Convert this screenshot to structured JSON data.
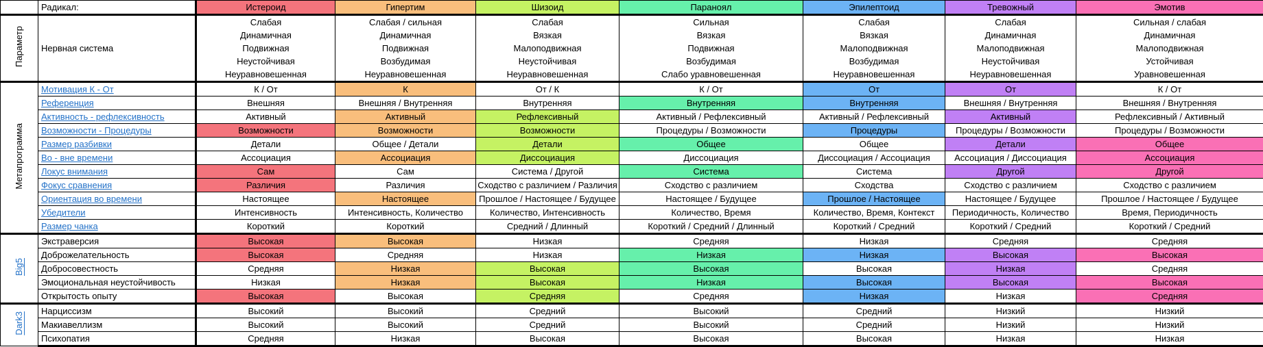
{
  "colors": {
    "link": "#2472C8",
    "grid": "#000000",
    "background": "#FFFFFF"
  },
  "header": {
    "label": "Радикал:"
  },
  "radicals": [
    {
      "name": "Истероид",
      "color": "#F4747C"
    },
    {
      "name": "Гипертим",
      "color": "#F9BE7C"
    },
    {
      "name": "Шизоид",
      "color": "#C5F263"
    },
    {
      "name": "Параноял",
      "color": "#66F0AB"
    },
    {
      "name": "Эпилептоид",
      "color": "#6CB3F5"
    },
    {
      "name": "Тревожный",
      "color": "#C080F5"
    },
    {
      "name": "Эмотив",
      "color": "#FA70B5"
    }
  ],
  "sections": [
    {
      "id": "parametr",
      "label": "Параметр",
      "side_link": false,
      "rows": [
        {
          "label": "Нервная система",
          "link": false,
          "multi": true,
          "cells": [
            [
              "Слабая",
              "Динамичная",
              "Подвижная",
              "Неустойчивая",
              "Неуравновешенная"
            ],
            [
              "Слабая / сильная",
              "Динамичная",
              "Подвижная",
              "Возбудимая",
              "Неуравновешенная"
            ],
            [
              "Слабая",
              "Вязкая",
              "Малоподвижная",
              "Неустойчивая",
              "Неуравновешенная"
            ],
            [
              "Сильная",
              "Вязкая",
              "Подвижная",
              "Возбудимая",
              "Слабо уравновешенная"
            ],
            [
              "Слабая",
              "Вязкая",
              "Малоподвижная",
              "Возбудимая",
              "Неуравновешенная"
            ],
            [
              "Слабая",
              "Динамичная",
              "Малоподвижная",
              "Неустойчивая",
              "Неуравновешенная"
            ],
            [
              "Сильная / слабая",
              "Динамичная",
              "Малоподвижная",
              "Устойчивая",
              "Уравновешенная"
            ]
          ]
        }
      ]
    },
    {
      "id": "metaprogramma",
      "label": "Метапрограмма",
      "side_link": false,
      "rows": [
        {
          "label": "Мотивация К - От",
          "link": true,
          "cells": [
            [
              "К / От",
              0
            ],
            [
              "К",
              1
            ],
            [
              "От / К",
              0
            ],
            [
              "К / От",
              0
            ],
            [
              "От",
              1
            ],
            [
              "От",
              1
            ],
            [
              "К / От",
              0
            ]
          ]
        },
        {
          "label": "Референция",
          "link": true,
          "cells": [
            [
              "Внешняя",
              0
            ],
            [
              "Внешняя / Внутренняя",
              0
            ],
            [
              "Внутренняя",
              0
            ],
            [
              "Внутренняя",
              1
            ],
            [
              "Внутренняя",
              1
            ],
            [
              "Внешняя / Внутренняя",
              0
            ],
            [
              "Внешняя / Внутренняя",
              0
            ]
          ]
        },
        {
          "label": "Активность - рефлексивность",
          "link": true,
          "cells": [
            [
              "Активный",
              0
            ],
            [
              "Активный",
              1
            ],
            [
              "Рефлексивный",
              1
            ],
            [
              "Активный / Рефлексивный",
              0
            ],
            [
              "Активный / Рефлексивный",
              0
            ],
            [
              "Активный",
              1
            ],
            [
              "Рефлексивный / Активный",
              0
            ]
          ]
        },
        {
          "label": "Возможности - Процедуры",
          "link": true,
          "cells": [
            [
              "Возможности",
              1
            ],
            [
              "Возможности",
              1
            ],
            [
              "Возможности",
              1
            ],
            [
              "Процедуры / Возможности",
              0
            ],
            [
              "Процедуры",
              1
            ],
            [
              "Процедуры / Возможности",
              0
            ],
            [
              "Процедуры / Возможности",
              0
            ]
          ]
        },
        {
          "label": "Размер разбивки",
          "link": true,
          "cells": [
            [
              "Детали",
              0
            ],
            [
              "Общее / Детали",
              0
            ],
            [
              "Детали",
              1
            ],
            [
              "Общее",
              1
            ],
            [
              "Общее",
              0
            ],
            [
              "Детали",
              1
            ],
            [
              "Общее",
              1
            ]
          ]
        },
        {
          "label": "Во - вне времени",
          "link": true,
          "cells": [
            [
              "Ассоциация",
              0
            ],
            [
              "Ассоциация",
              1
            ],
            [
              "Диссоциация",
              1
            ],
            [
              "Диссоциация",
              0
            ],
            [
              "Диссоциация / Ассоциация",
              0
            ],
            [
              "Ассоциация / Диссоциация",
              0
            ],
            [
              "Ассоциация",
              1
            ]
          ]
        },
        {
          "label": "Локус внимания",
          "link": true,
          "cells": [
            [
              "Сам",
              1
            ],
            [
              "Сам",
              0
            ],
            [
              "Система / Другой",
              0
            ],
            [
              "Система",
              1
            ],
            [
              "Система",
              0
            ],
            [
              "Другой",
              1
            ],
            [
              "Другой",
              1
            ]
          ]
        },
        {
          "label": "Фокус сравнения",
          "link": true,
          "cells": [
            [
              "Различия",
              1
            ],
            [
              "Различия",
              0
            ],
            [
              "Сходство с различием / Различия",
              0
            ],
            [
              "Сходство с различием",
              0
            ],
            [
              "Сходства",
              0
            ],
            [
              "Сходство с различием",
              0
            ],
            [
              "Сходство с различием",
              0
            ]
          ]
        },
        {
          "label": "Ориентация во времени",
          "link": true,
          "cells": [
            [
              "Настоящее",
              0
            ],
            [
              "Настоящее",
              1
            ],
            [
              "Прошлое / Настоящее / Будущее",
              0
            ],
            [
              "Настоящее / Будущее",
              0
            ],
            [
              "Прошлое / Настоящее",
              1
            ],
            [
              "Настоящее / Будущее",
              0
            ],
            [
              "Прошлое / Настоящее / Будущее",
              0
            ]
          ]
        },
        {
          "label": "Убедители",
          "link": true,
          "cells": [
            [
              "Интенсивность",
              0
            ],
            [
              "Интенсивность, Количество",
              0
            ],
            [
              "Количество, Интенсивность",
              0
            ],
            [
              "Количество, Время",
              0
            ],
            [
              "Количество, Время, Контекст",
              0
            ],
            [
              "Периодичность, Количество",
              0
            ],
            [
              "Время, Периодичность",
              0
            ]
          ]
        },
        {
          "label": "Размер чанка",
          "link": true,
          "cells": [
            [
              "Короткий",
              0
            ],
            [
              "Короткий",
              0
            ],
            [
              "Средний / Длинный",
              0
            ],
            [
              "Короткий / Средний / Длинный",
              0
            ],
            [
              "Короткий / Средний",
              0
            ],
            [
              "Короткий / Средний",
              0
            ],
            [
              "Короткий / Средний",
              0
            ]
          ]
        }
      ]
    },
    {
      "id": "big5",
      "label": "Big5",
      "side_link": true,
      "rows": [
        {
          "label": "Экстраверсия",
          "link": false,
          "cells": [
            [
              "Высокая",
              1
            ],
            [
              "Высокая",
              1
            ],
            [
              "Низкая",
              0
            ],
            [
              "Средняя",
              0
            ],
            [
              "Низкая",
              0
            ],
            [
              "Средняя",
              0
            ],
            [
              "Средняя",
              0
            ]
          ]
        },
        {
          "label": "Доброжелательность",
          "link": false,
          "cells": [
            [
              "Высокая",
              1
            ],
            [
              "Средняя",
              0
            ],
            [
              "Низкая",
              0
            ],
            [
              "Низкая",
              1
            ],
            [
              "Низкая",
              1
            ],
            [
              "Высокая",
              1
            ],
            [
              "Высокая",
              1
            ]
          ]
        },
        {
          "label": "Добросовестность",
          "link": false,
          "cells": [
            [
              "Средняя",
              0
            ],
            [
              "Низкая",
              1
            ],
            [
              "Высокая",
              1
            ],
            [
              "Высокая",
              1
            ],
            [
              "Высокая",
              0
            ],
            [
              "Низкая",
              1
            ],
            [
              "Средняя",
              0
            ]
          ]
        },
        {
          "label": "Эмоциональная неустойчивость",
          "link": false,
          "cells": [
            [
              "Низкая",
              0
            ],
            [
              "Низкая",
              1
            ],
            [
              "Высокая",
              1
            ],
            [
              "Низкая",
              1
            ],
            [
              "Высокая",
              1
            ],
            [
              "Высокая",
              1
            ],
            [
              "Высокая",
              1
            ]
          ]
        },
        {
          "label": "Открытость опыту",
          "link": false,
          "cells": [
            [
              "Высокая",
              1
            ],
            [
              "Высокая",
              0
            ],
            [
              "Средняя",
              1
            ],
            [
              "Средняя",
              0
            ],
            [
              "Низкая",
              1
            ],
            [
              "Низкая",
              0
            ],
            [
              "Средняя",
              1
            ]
          ]
        }
      ]
    },
    {
      "id": "dark3",
      "label": "Dark3",
      "side_link": true,
      "rows": [
        {
          "label": "Нарциссизм",
          "link": false,
          "cells": [
            [
              "Высокий",
              0
            ],
            [
              "Высокий",
              0
            ],
            [
              "Средний",
              0
            ],
            [
              "Высокий",
              0
            ],
            [
              "Средний",
              0
            ],
            [
              "Низкий",
              0
            ],
            [
              "Низкий",
              0
            ]
          ]
        },
        {
          "label": "Макиавеллизм",
          "link": false,
          "cells": [
            [
              "Высокий",
              0
            ],
            [
              "Высокий",
              0
            ],
            [
              "Средний",
              0
            ],
            [
              "Высокий",
              0
            ],
            [
              "Средний",
              0
            ],
            [
              "Низкий",
              0
            ],
            [
              "Низкий",
              0
            ]
          ]
        },
        {
          "label": "Психопатия",
          "link": false,
          "cells": [
            [
              "Средняя",
              0
            ],
            [
              "Низкая",
              0
            ],
            [
              "Высокая",
              0
            ],
            [
              "Высокая",
              0
            ],
            [
              "Высокая",
              0
            ],
            [
              "Низкая",
              0
            ],
            [
              "Низкая",
              0
            ]
          ]
        }
      ]
    }
  ]
}
